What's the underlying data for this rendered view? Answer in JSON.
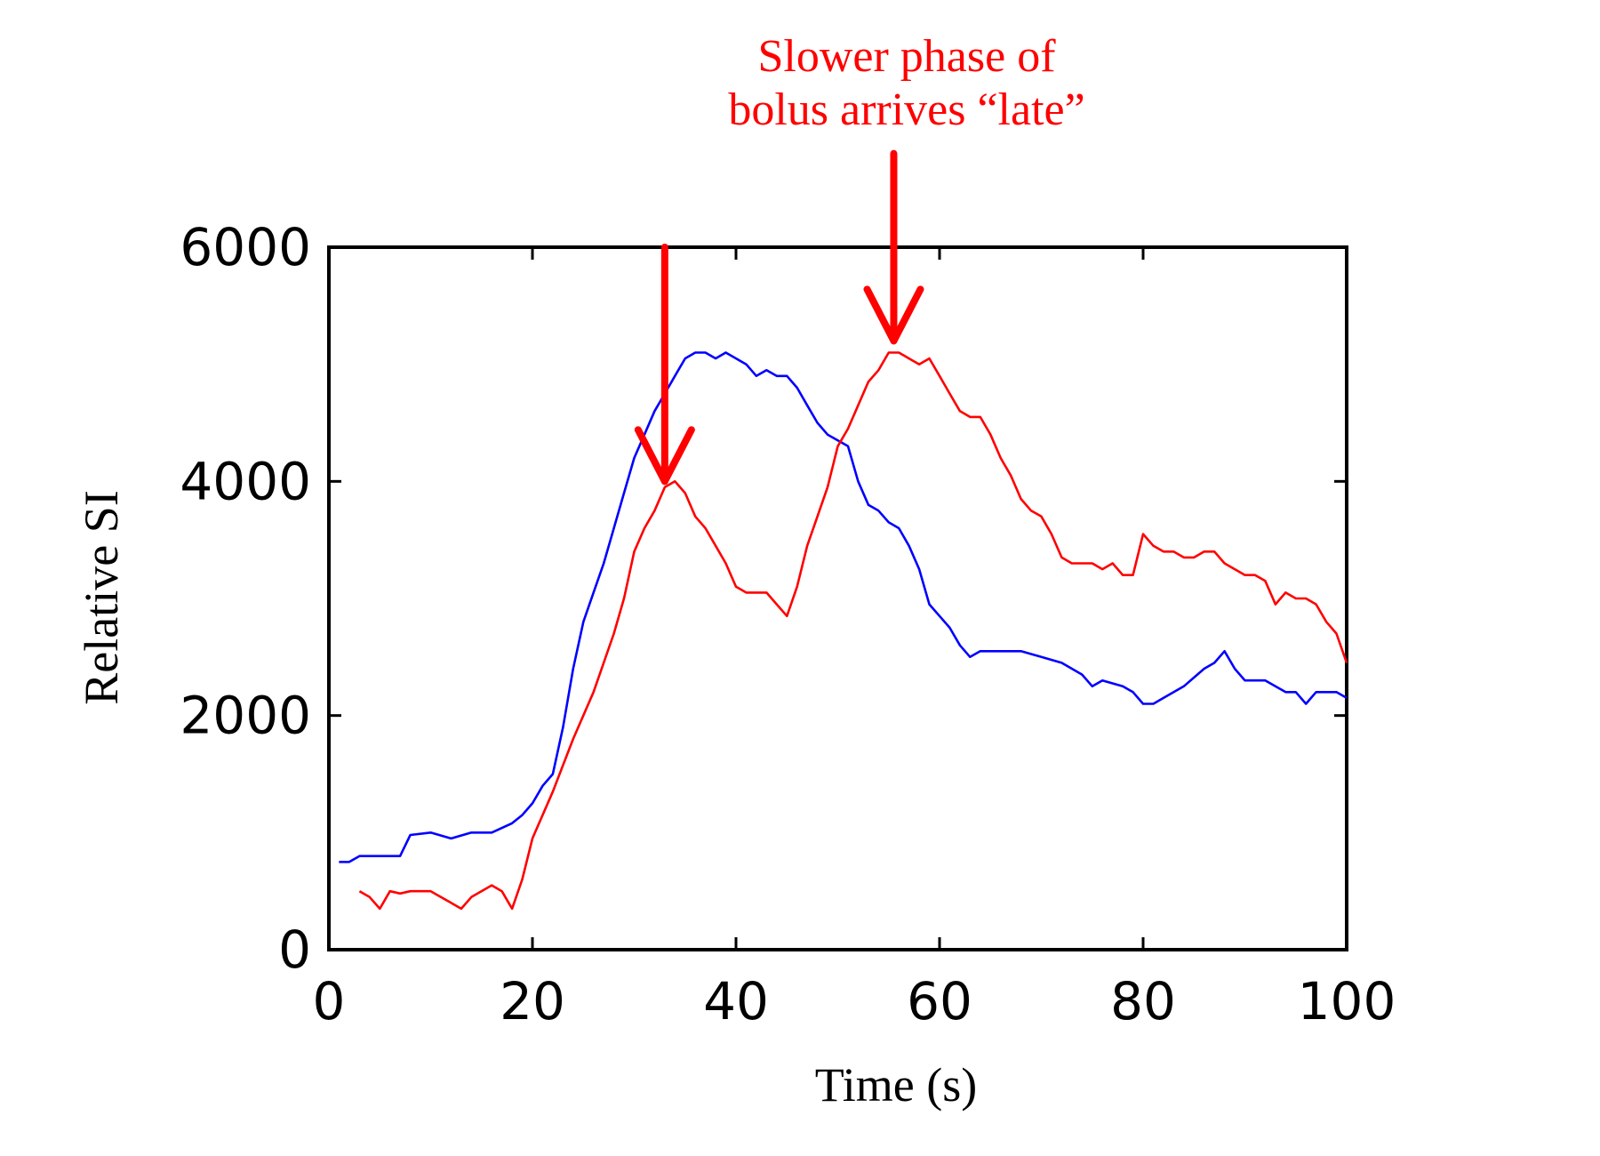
{
  "chart_data": {
    "type": "line",
    "title": "",
    "xlabel": "Time (s)",
    "ylabel": "Relative SI",
    "xlim": [
      0,
      100
    ],
    "ylim": [
      0,
      6000
    ],
    "xticks": [
      0,
      20,
      40,
      60,
      80,
      100
    ],
    "yticks": [
      0,
      2000,
      4000,
      6000
    ],
    "grid": false,
    "series": [
      {
        "name": "blue curve",
        "color": "#0000ff",
        "x": [
          1,
          2,
          3,
          5,
          6,
          7,
          8,
          10,
          12,
          14,
          16,
          18,
          19,
          20,
          21,
          22,
          23,
          24,
          25,
          26,
          27,
          28,
          29,
          30,
          31,
          32,
          33,
          34,
          35,
          36,
          37,
          38,
          39,
          40,
          41,
          42,
          43,
          44,
          45,
          46,
          47,
          48,
          49,
          50,
          51,
          52,
          53,
          54,
          55,
          56,
          57,
          58,
          59,
          60,
          61,
          62,
          63,
          64,
          65,
          66,
          68,
          70,
          72,
          74,
          75,
          76,
          78,
          79,
          80,
          81,
          82,
          84,
          86,
          87,
          88,
          89,
          90,
          92,
          94,
          95,
          96,
          97,
          98,
          99,
          100
        ],
        "values": [
          750,
          750,
          800,
          800,
          800,
          800,
          980,
          1000,
          950,
          1000,
          1000,
          1080,
          1150,
          1250,
          1400,
          1500,
          1900,
          2400,
          2800,
          3050,
          3300,
          3600,
          3900,
          4200,
          4400,
          4600,
          4750,
          4900,
          5050,
          5100,
          5100,
          5050,
          5100,
          5050,
          5000,
          4900,
          4950,
          4900,
          4900,
          4800,
          4650,
          4500,
          4400,
          4350,
          4300,
          4000,
          3800,
          3750,
          3650,
          3600,
          3450,
          3250,
          2950,
          2850,
          2750,
          2600,
          2500,
          2550,
          2550,
          2550,
          2550,
          2500,
          2450,
          2350,
          2250,
          2300,
          2250,
          2200,
          2100,
          2100,
          2150,
          2250,
          2400,
          2450,
          2550,
          2400,
          2300,
          2300,
          2200,
          2200,
          2100,
          2200,
          2200,
          2200,
          2150
        ]
      },
      {
        "name": "red curve",
        "color": "#ff0000",
        "x": [
          3,
          4,
          5,
          6,
          7,
          8,
          10,
          12,
          13,
          14,
          16,
          17,
          18,
          19,
          20,
          22,
          24,
          26,
          28,
          29,
          30,
          31,
          32,
          33,
          34,
          35,
          36,
          37,
          38,
          39,
          40,
          41,
          42,
          43,
          44,
          45,
          46,
          47,
          48,
          49,
          50,
          51,
          52,
          53,
          54,
          55,
          56,
          57,
          58,
          59,
          60,
          61,
          62,
          63,
          64,
          65,
          66,
          67,
          68,
          69,
          70,
          71,
          72,
          73,
          74,
          75,
          76,
          77,
          78,
          79,
          80,
          81,
          82,
          83,
          84,
          85,
          86,
          87,
          88,
          89,
          90,
          91,
          92,
          93,
          94,
          95,
          96,
          97,
          98,
          99,
          100
        ],
        "values": [
          500,
          450,
          350,
          500,
          480,
          500,
          500,
          400,
          350,
          450,
          550,
          500,
          350,
          600,
          950,
          1350,
          1800,
          2200,
          2700,
          3000,
          3400,
          3600,
          3750,
          3950,
          4000,
          3900,
          3700,
          3600,
          3450,
          3300,
          3100,
          3050,
          3050,
          3050,
          2950,
          2850,
          3100,
          3450,
          3700,
          3950,
          4300,
          4450,
          4650,
          4850,
          4950,
          5100,
          5100,
          5050,
          5000,
          5050,
          4900,
          4750,
          4600,
          4550,
          4550,
          4400,
          4200,
          4050,
          3850,
          3750,
          3700,
          3550,
          3350,
          3300,
          3300,
          3300,
          3250,
          3300,
          3200,
          3200,
          3550,
          3450,
          3400,
          3400,
          3350,
          3350,
          3400,
          3400,
          3300,
          3250,
          3200,
          3200,
          3150,
          2950,
          3050,
          3000,
          3000,
          2950,
          2800,
          2700,
          2450
        ]
      }
    ],
    "annotations": [
      {
        "text": "Slower phase of",
        "color": "#ff0000"
      },
      {
        "text": "bolus arrives “late”",
        "color": "#ff0000"
      }
    ],
    "arrows": [
      {
        "x": 33,
        "y_from": 6000,
        "y_to": 4000,
        "color": "#ff0000"
      },
      {
        "x": 55.5,
        "y_from": 6800,
        "y_to": 5200,
        "color": "#ff0000"
      }
    ]
  }
}
